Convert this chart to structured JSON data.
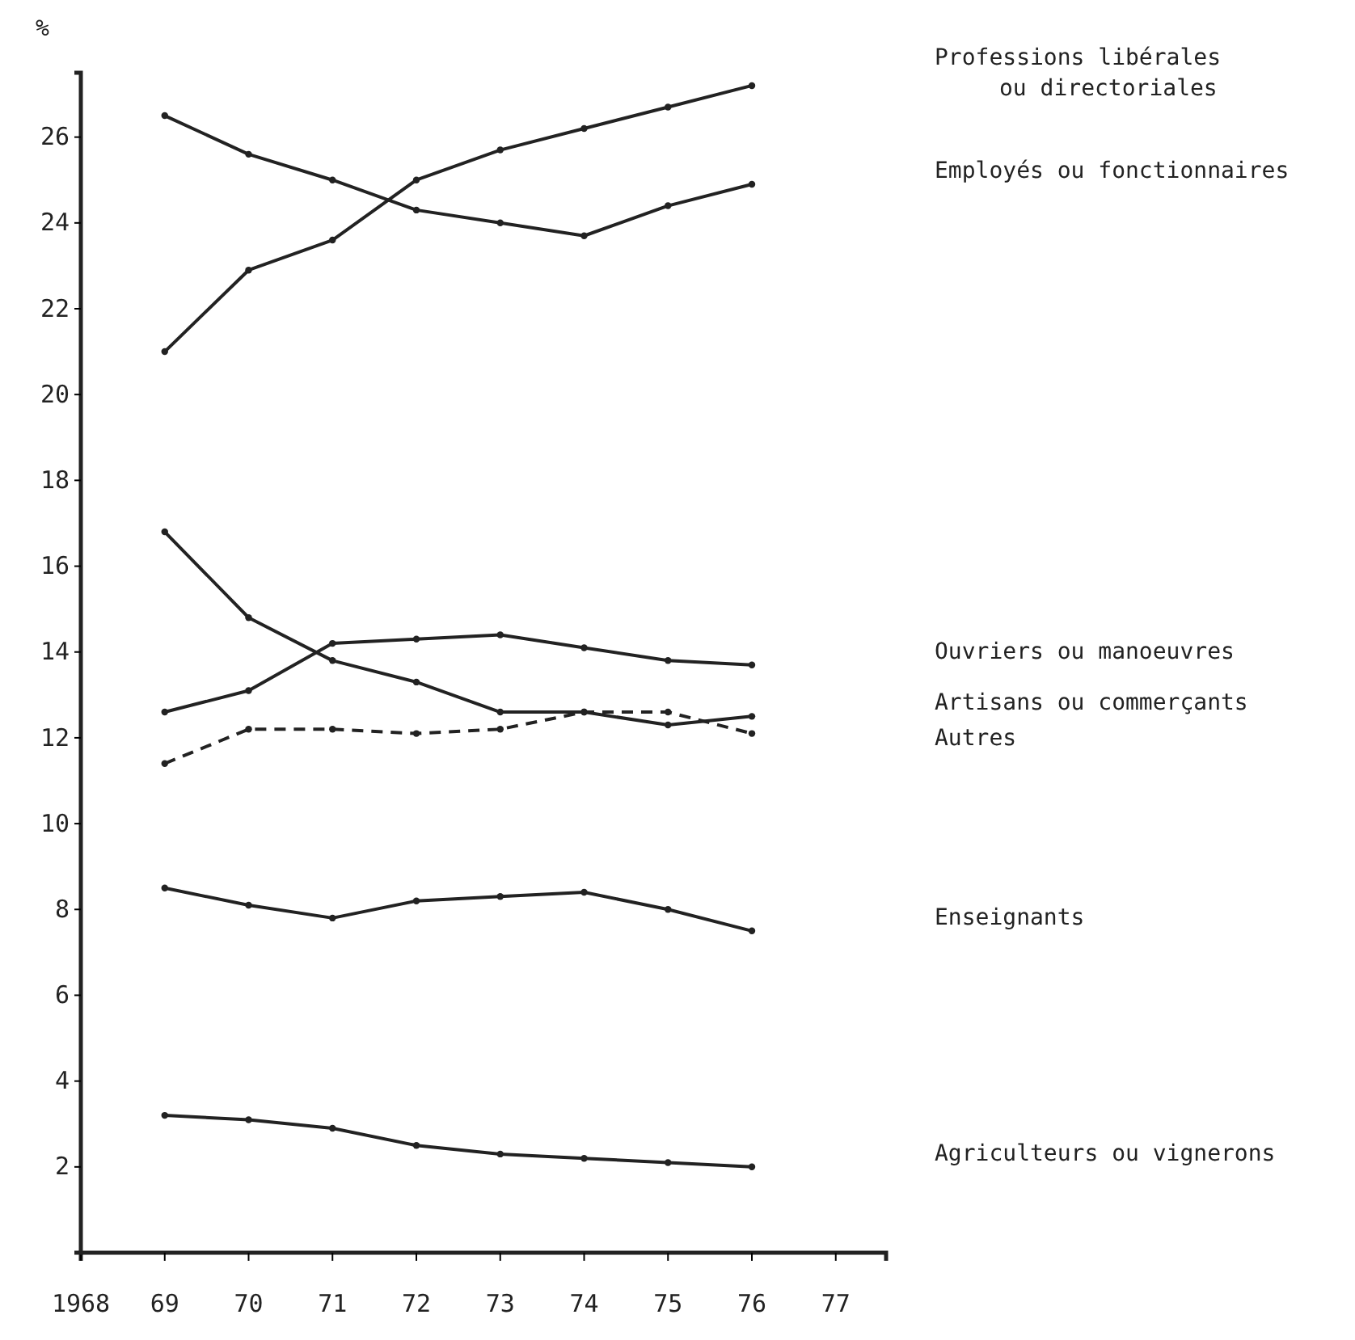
{
  "chart_data": {
    "type": "line",
    "ylabel": "%",
    "x": [
      1969,
      1970,
      1971,
      1972,
      1973,
      1974,
      1975,
      1976
    ],
    "xlim": [
      1968,
      1977.6
    ],
    "xticks": [
      {
        "value": 1968,
        "label": "1968"
      },
      {
        "value": 1969,
        "label": "69"
      },
      {
        "value": 1970,
        "label": "70"
      },
      {
        "value": 1971,
        "label": "71"
      },
      {
        "value": 1972,
        "label": "72"
      },
      {
        "value": 1973,
        "label": "73"
      },
      {
        "value": 1974,
        "label": "74"
      },
      {
        "value": 1975,
        "label": "75"
      },
      {
        "value": 1976,
        "label": "76"
      },
      {
        "value": 1977,
        "label": "77"
      }
    ],
    "ylim": [
      0,
      27.5
    ],
    "yticks": [
      2,
      4,
      6,
      8,
      10,
      12,
      14,
      16,
      18,
      20,
      22,
      24,
      26
    ],
    "grid": false,
    "marker": "circle",
    "series": [
      {
        "name": "Professions libérales\nou directoriales",
        "color": "#222222",
        "values": [
          21.0,
          22.9,
          23.6,
          25.0,
          25.7,
          26.2,
          26.7,
          27.2
        ]
      },
      {
        "name": "Employés ou fonctionnaires",
        "color": "#222222",
        "values": [
          26.5,
          25.6,
          25.0,
          24.3,
          24.0,
          23.7,
          24.4,
          24.9
        ]
      },
      {
        "name": "Ouvriers ou manoeuvres",
        "color": "#222222",
        "values": [
          12.6,
          13.1,
          14.2,
          14.3,
          14.4,
          14.1,
          13.8,
          13.7
        ]
      },
      {
        "name": "Artisans ou commerçants",
        "color": "#222222",
        "values": [
          16.8,
          14.8,
          13.8,
          13.3,
          12.6,
          12.6,
          12.3,
          12.5
        ]
      },
      {
        "name": "Autres",
        "color": "#222222",
        "line_style": "dashed",
        "values": [
          11.4,
          12.2,
          12.2,
          12.1,
          12.2,
          12.6,
          12.6,
          12.1
        ]
      },
      {
        "name": "Enseignants",
        "color": "#222222",
        "values": [
          8.5,
          8.1,
          7.8,
          8.2,
          8.3,
          8.4,
          8.0,
          7.5
        ]
      },
      {
        "name": "Agriculteurs ou vignerons",
        "color": "#222222",
        "values": [
          3.2,
          3.1,
          2.9,
          2.5,
          2.3,
          2.2,
          2.1,
          2.0
        ]
      }
    ]
  }
}
